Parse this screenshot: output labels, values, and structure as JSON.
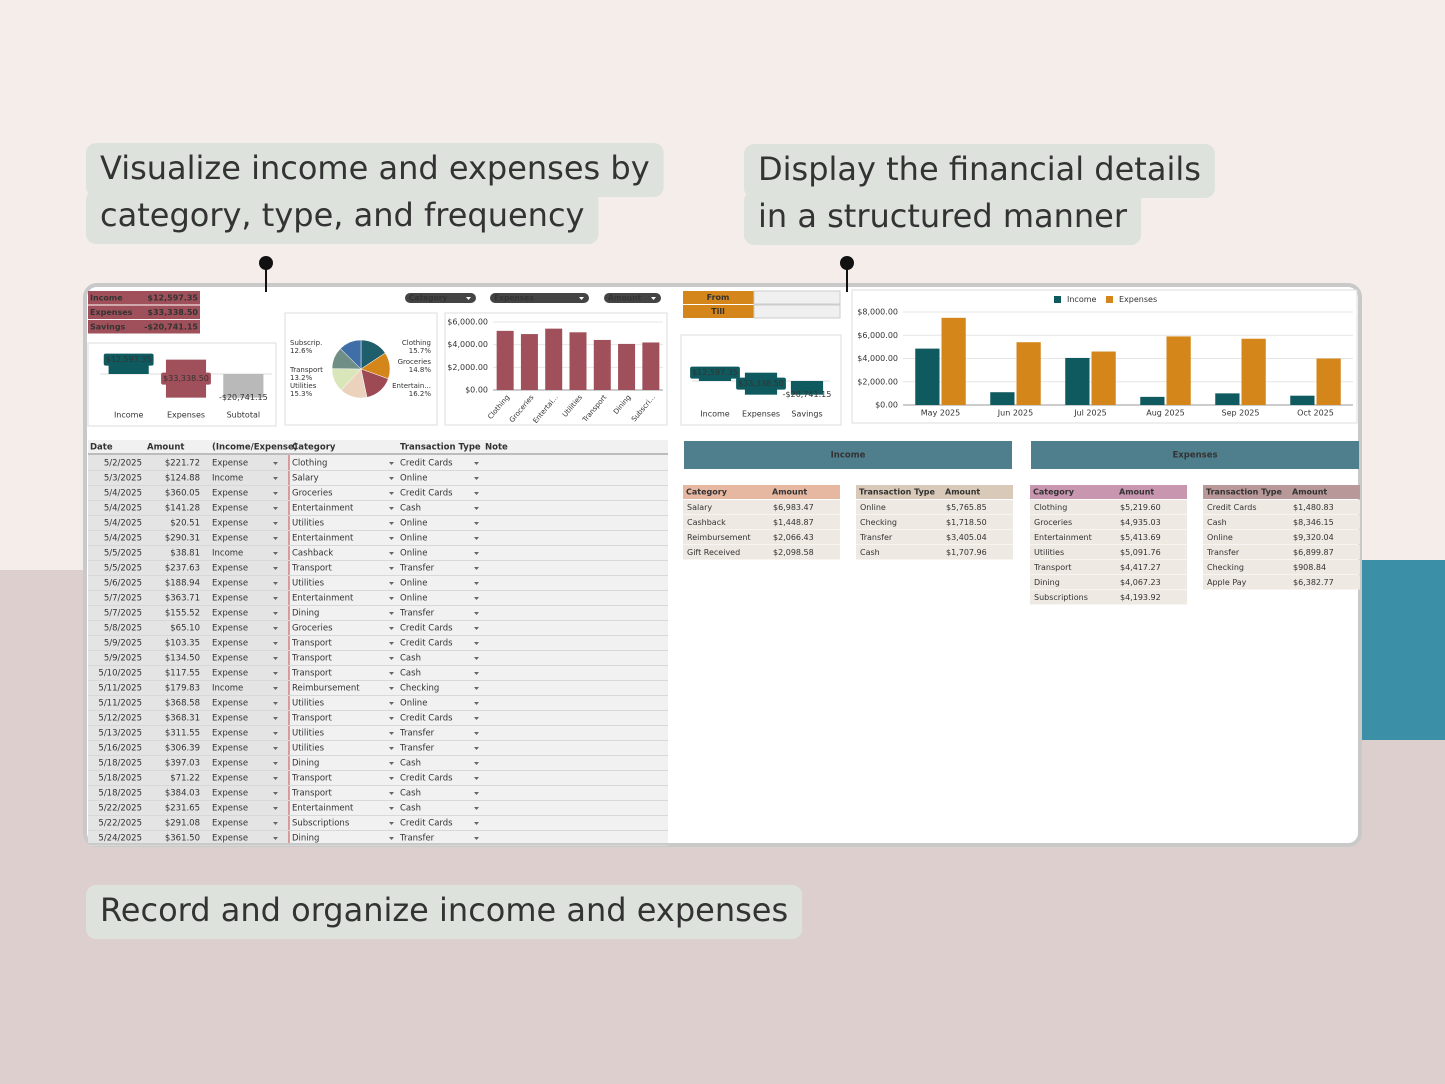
{
  "callouts": [
    {
      "lines": [
        "Visualize income and expenses by",
        "category, type, and frequency"
      ]
    },
    {
      "lines": [
        "Display the financial details",
        "in a structured manner"
      ]
    },
    {
      "lines": [
        "Record and organize income and expenses"
      ]
    }
  ],
  "dashboard": {
    "summary": {
      "rows": [
        [
          "Income",
          "$12,597.35"
        ],
        [
          "Expenses",
          "$33,338.50"
        ],
        [
          "Savings",
          "-$20,741.15"
        ]
      ]
    },
    "filters": [
      "Category",
      "Expenses",
      "Amount"
    ],
    "date_filter": [
      "From",
      "Till"
    ],
    "waterfall_1": {
      "type": "waterfall",
      "categories": [
        "Income",
        "Expenses",
        "Subtotal"
      ],
      "values": [
        12597.35,
        33338.5,
        -20741.15
      ],
      "value_labels": [
        "$12,597.35",
        "$33,338.50",
        "-$20,741.15"
      ],
      "colors": [
        "#0f5a5e",
        "#a0505a",
        "#b9b9b9"
      ]
    },
    "pie": {
      "type": "pie",
      "categories": [
        "Clothing",
        "Groceries",
        "Entertain...",
        "Utilities",
        "Transport",
        null,
        "Subscrip."
      ],
      "values": [
        15.7,
        14.8,
        16.2,
        15.3,
        13.2,
        12.2,
        12.6
      ],
      "value_labels": [
        "15.7%",
        "14.8%",
        "16.2%",
        "15.3%",
        "13.2%",
        null,
        "12.6%"
      ],
      "colors": [
        "#1f5f6b",
        "#d4861a",
        "#9e4a55",
        "#ead2bd",
        "#d9e6b9",
        "#6f8f86",
        "#3f6fa6"
      ]
    },
    "category_bar": {
      "type": "bar",
      "categories": [
        "Clothing",
        "Groceries",
        "Entertai...",
        "Utilities",
        "Transport",
        "Dining",
        "Subscri..."
      ],
      "values": [
        5219.6,
        4935.03,
        5413.69,
        5091.76,
        4417.27,
        4067.23,
        4193.92
      ],
      "color": "#a0505a",
      "ylim": [
        0,
        6000
      ],
      "yticks": [
        {
          "value": 0,
          "label": "$0.00"
        },
        {
          "value": 2000,
          "label": "$2,000.00"
        },
        {
          "value": 4000,
          "label": "$4,000.00"
        },
        {
          "value": 6000,
          "label": "$6,000.00"
        }
      ]
    },
    "waterfall_2": {
      "type": "waterfall",
      "categories": [
        "Income",
        "Expenses",
        "Savings"
      ],
      "values": [
        12597.35,
        33338.5,
        -20741.15
      ],
      "value_labels": [
        "$12,597.35",
        "$33,338.50",
        "-$20,741.15"
      ],
      "colors": [
        "#0f5a5e",
        "#0f5a5e",
        "#0f5a5e"
      ]
    },
    "monthly_bar": {
      "type": "bar",
      "categories": [
        "May 2025",
        "Jun 2025",
        "Jul 2025",
        "Aug 2025",
        "Sep 2025",
        "Oct 2025"
      ],
      "series": [
        {
          "name": "Income",
          "color": "#0f5a5e",
          "values": [
            4850,
            1100,
            4050,
            700,
            1000,
            800
          ]
        },
        {
          "name": "Expenses",
          "color": "#d4861a",
          "values": [
            7500,
            5400,
            4600,
            5900,
            5700,
            4000
          ]
        }
      ],
      "ylim": [
        0,
        8000
      ],
      "yticks": [
        {
          "value": 0,
          "label": "$0.00"
        },
        {
          "value": 2000,
          "label": "$2,000.00"
        },
        {
          "value": 4000,
          "label": "$4,000.00"
        },
        {
          "value": 6000,
          "label": "$6,000.00"
        },
        {
          "value": 8000,
          "label": "$8,000.00"
        }
      ]
    }
  },
  "ledger": {
    "columns": [
      "Date",
      "Amount",
      "(Income/Expense)",
      "Category",
      "Transaction Type",
      "Note"
    ],
    "rows": [
      [
        "5/2/2025",
        "$221.72",
        "Expense",
        "Clothing",
        "Credit Cards"
      ],
      [
        "5/3/2025",
        "$124.88",
        "Income",
        "Salary",
        "Online"
      ],
      [
        "5/4/2025",
        "$360.05",
        "Expense",
        "Groceries",
        "Credit Cards"
      ],
      [
        "5/4/2025",
        "$141.28",
        "Expense",
        "Entertainment",
        "Cash"
      ],
      [
        "5/4/2025",
        "$20.51",
        "Expense",
        "Utilities",
        "Online"
      ],
      [
        "5/4/2025",
        "$290.31",
        "Expense",
        "Entertainment",
        "Online"
      ],
      [
        "5/5/2025",
        "$38.81",
        "Income",
        "Cashback",
        "Online"
      ],
      [
        "5/5/2025",
        "$237.63",
        "Expense",
        "Transport",
        "Transfer"
      ],
      [
        "5/6/2025",
        "$188.94",
        "Expense",
        "Utilities",
        "Online"
      ],
      [
        "5/7/2025",
        "$363.71",
        "Expense",
        "Entertainment",
        "Online"
      ],
      [
        "5/7/2025",
        "$155.52",
        "Expense",
        "Dining",
        "Transfer"
      ],
      [
        "5/8/2025",
        "$65.10",
        "Expense",
        "Groceries",
        "Credit Cards"
      ],
      [
        "5/9/2025",
        "$103.35",
        "Expense",
        "Transport",
        "Credit Cards"
      ],
      [
        "5/9/2025",
        "$134.50",
        "Expense",
        "Transport",
        "Cash"
      ],
      [
        "5/10/2025",
        "$117.55",
        "Expense",
        "Transport",
        "Cash"
      ],
      [
        "5/11/2025",
        "$179.83",
        "Income",
        "Reimbursement",
        "Checking"
      ],
      [
        "5/11/2025",
        "$368.58",
        "Expense",
        "Utilities",
        "Online"
      ],
      [
        "5/12/2025",
        "$368.31",
        "Expense",
        "Transport",
        "Credit Cards"
      ],
      [
        "5/13/2025",
        "$311.55",
        "Expense",
        "Utilities",
        "Transfer"
      ],
      [
        "5/16/2025",
        "$306.39",
        "Expense",
        "Utilities",
        "Transfer"
      ],
      [
        "5/18/2025",
        "$397.03",
        "Expense",
        "Dining",
        "Cash"
      ],
      [
        "5/18/2025",
        "$71.22",
        "Expense",
        "Transport",
        "Credit Cards"
      ],
      [
        "5/18/2025",
        "$384.03",
        "Expense",
        "Transport",
        "Cash"
      ],
      [
        "5/22/2025",
        "$231.65",
        "Expense",
        "Entertainment",
        "Cash"
      ],
      [
        "5/22/2025",
        "$291.08",
        "Expense",
        "Subscriptions",
        "Credit Cards"
      ],
      [
        "5/24/2025",
        "$361.50",
        "Expense",
        "Dining",
        "Transfer"
      ]
    ]
  },
  "pivots": [
    {
      "title": "Income",
      "tables": [
        {
          "columns": [
            "Category",
            "Amount"
          ],
          "rows": [
            [
              "Salary",
              "$6,983.47"
            ],
            [
              "Cashback",
              "$1,448.87"
            ],
            [
              "Reimbursement",
              "$2,066.43"
            ],
            [
              "Gift Received",
              "$2,098.58"
            ]
          ]
        },
        {
          "columns": [
            "Transaction Type",
            "Amount"
          ],
          "rows": [
            [
              "Online",
              "$5,765.85"
            ],
            [
              "Checking",
              "$1,718.50"
            ],
            [
              "Transfer",
              "$3,405.04"
            ],
            [
              "Cash",
              "$1,707.96"
            ]
          ]
        }
      ]
    },
    {
      "title": "Expenses",
      "tables": [
        {
          "columns": [
            "Category",
            "Amount"
          ],
          "rows": [
            [
              "Clothing",
              "$5,219.60"
            ],
            [
              "Groceries",
              "$4,935.03"
            ],
            [
              "Entertainment",
              "$5,413.69"
            ],
            [
              "Utilities",
              "$5,091.76"
            ],
            [
              "Transport",
              "$4,417.27"
            ],
            [
              "Dining",
              "$4,067.23"
            ],
            [
              "Subscriptions",
              "$4,193.92"
            ]
          ]
        },
        {
          "columns": [
            "Transaction Type",
            "Amount"
          ],
          "rows": [
            [
              "Credit Cards",
              "$1,480.83"
            ],
            [
              "Cash",
              "$8,346.15"
            ],
            [
              "Online",
              "$9,320.04"
            ],
            [
              "Transfer",
              "$6,899.87"
            ],
            [
              "Checking",
              "$908.84"
            ],
            [
              "Apple Pay",
              "$6,382.77"
            ]
          ]
        }
      ]
    }
  ]
}
